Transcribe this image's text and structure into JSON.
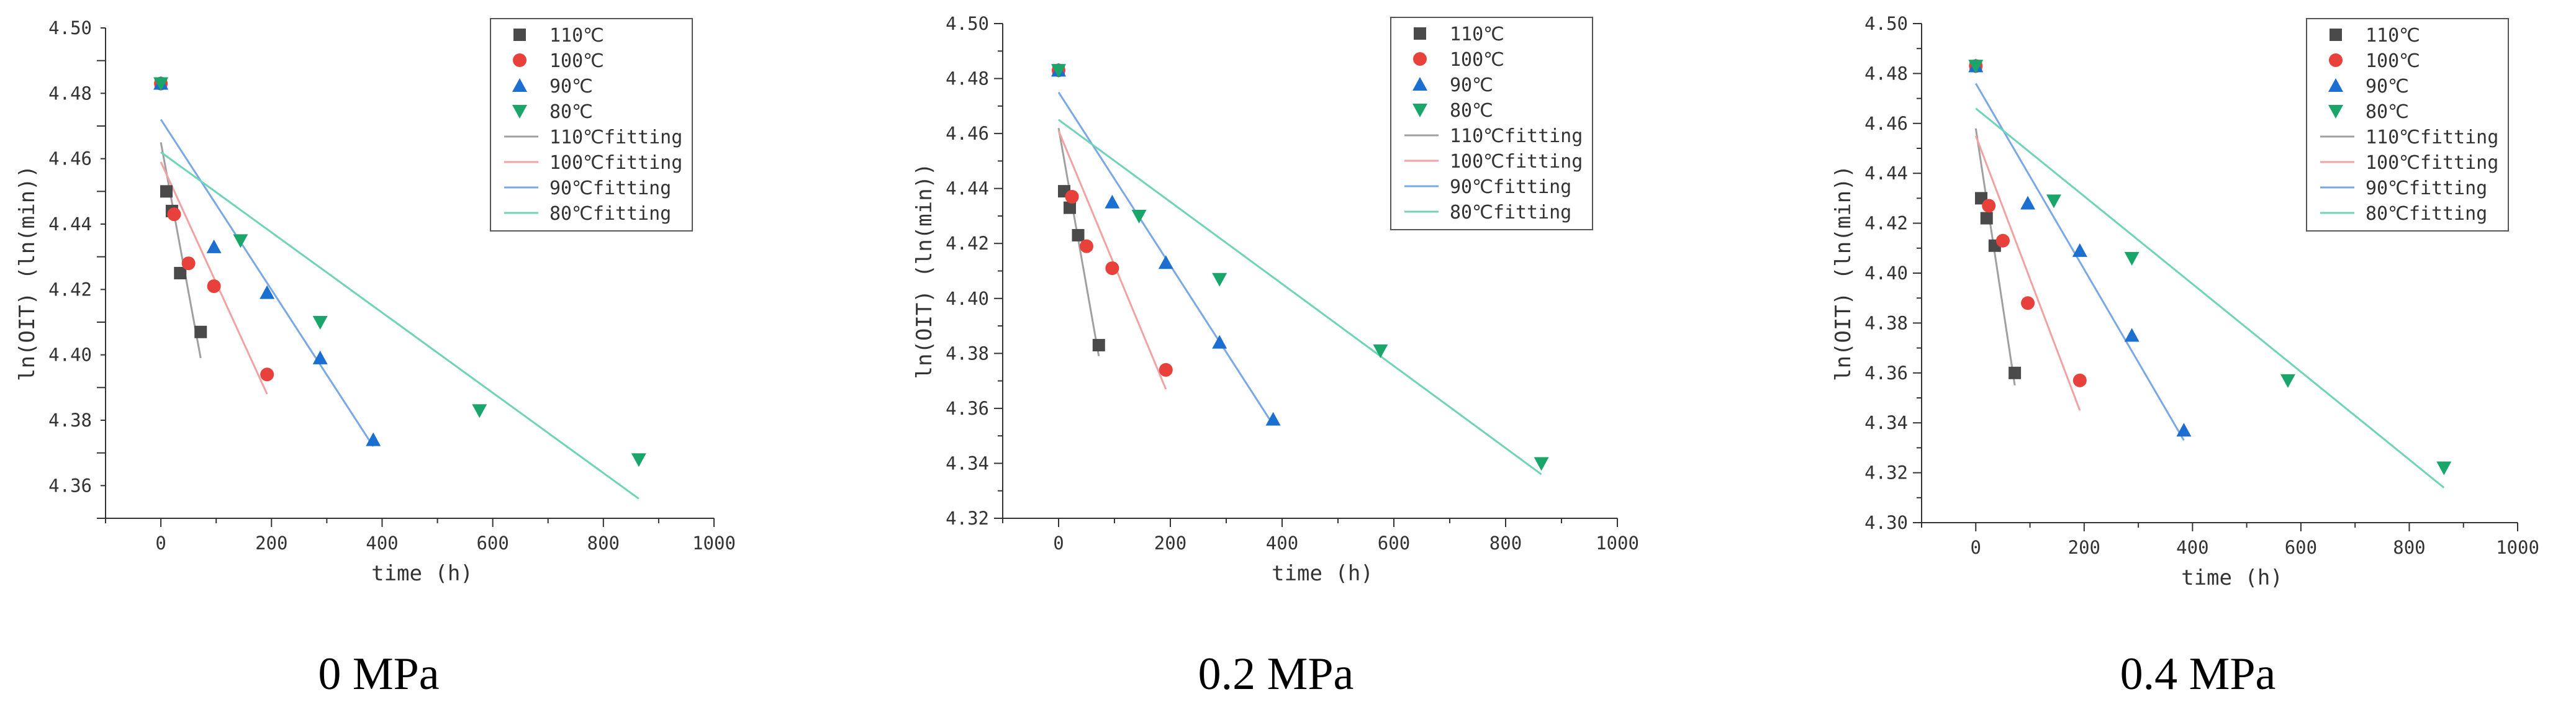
{
  "chart_data": [
    {
      "type": "scatter",
      "title": "",
      "caption": "0 MPa",
      "xlabel": "time (h)",
      "ylabel": "ln(OIT) (ln(min))",
      "xlim": [
        -100,
        1000
      ],
      "ylim": [
        4.35,
        4.5
      ],
      "xticks": [
        0,
        200,
        400,
        600,
        800,
        1000
      ],
      "xtick_labels": [
        "0",
        "200",
        "400",
        "600",
        "800",
        "1000"
      ],
      "yticks": [
        4.36,
        4.38,
        4.4,
        4.42,
        4.44,
        4.46,
        4.48,
        4.5
      ],
      "ytick_labels": [
        "4.36",
        "4.38",
        "4.40",
        "4.42",
        "4.44",
        "4.46",
        "4.48",
        "4.50"
      ],
      "grid": false,
      "legend_position": "top-right",
      "series": [
        {
          "name": "110℃",
          "marker": "square",
          "color": "#4a4a4a",
          "x": [
            0,
            10,
            20,
            35,
            72
          ],
          "y": [
            4.483,
            4.45,
            4.444,
            4.425,
            4.407
          ]
        },
        {
          "name": "100℃",
          "marker": "circle",
          "color": "#e8413c",
          "x": [
            0,
            24,
            50,
            96,
            192
          ],
          "y": [
            4.483,
            4.443,
            4.428,
            4.421,
            4.394
          ]
        },
        {
          "name": "90℃",
          "marker": "triangle-up",
          "color": "#1a6fd1",
          "x": [
            0,
            96,
            192,
            288,
            384
          ],
          "y": [
            4.483,
            4.433,
            4.419,
            4.399,
            4.374
          ]
        },
        {
          "name": "80℃",
          "marker": "triangle-down",
          "color": "#1aa66b",
          "x": [
            0,
            144,
            288,
            576,
            864
          ],
          "y": [
            4.483,
            4.435,
            4.41,
            4.383,
            4.368
          ]
        }
      ],
      "fits": [
        {
          "name": "110℃fitting",
          "color": "#a0a0a0",
          "x": [
            0,
            72
          ],
          "y": [
            4.465,
            4.399
          ]
        },
        {
          "name": "100℃fitting",
          "color": "#f2a2a2",
          "x": [
            0,
            192
          ],
          "y": [
            4.459,
            4.388
          ]
        },
        {
          "name": "90℃fitting",
          "color": "#78a8e6",
          "x": [
            0,
            384
          ],
          "y": [
            4.472,
            4.372
          ]
        },
        {
          "name": "80℃fitting",
          "color": "#6fd3b8",
          "x": [
            0,
            864
          ],
          "y": [
            4.462,
            4.356
          ]
        }
      ]
    },
    {
      "type": "scatter",
      "title": "",
      "caption": "0.2 MPa",
      "xlabel": "time (h)",
      "ylabel": "ln(OIT) (ln(min))",
      "xlim": [
        -100,
        1000
      ],
      "ylim": [
        4.32,
        4.5
      ],
      "xticks": [
        0,
        200,
        400,
        600,
        800,
        1000
      ],
      "xtick_labels": [
        "0",
        "200",
        "400",
        "600",
        "800",
        "1000"
      ],
      "yticks": [
        4.32,
        4.34,
        4.36,
        4.38,
        4.4,
        4.42,
        4.44,
        4.46,
        4.48,
        4.5
      ],
      "ytick_labels": [
        "4.32",
        "4.34",
        "4.36",
        "4.38",
        "4.40",
        "4.42",
        "4.44",
        "4.46",
        "4.48",
        "4.50"
      ],
      "grid": false,
      "legend_position": "top-right",
      "series": [
        {
          "name": "110℃",
          "marker": "square",
          "color": "#4a4a4a",
          "x": [
            0,
            10,
            20,
            35,
            72
          ],
          "y": [
            4.483,
            4.439,
            4.433,
            4.423,
            4.383
          ]
        },
        {
          "name": "100℃",
          "marker": "circle",
          "color": "#e8413c",
          "x": [
            0,
            24,
            50,
            96,
            192
          ],
          "y": [
            4.483,
            4.437,
            4.419,
            4.411,
            4.374
          ]
        },
        {
          "name": "90℃",
          "marker": "triangle-up",
          "color": "#1a6fd1",
          "x": [
            0,
            96,
            192,
            288,
            384
          ],
          "y": [
            4.483,
            4.435,
            4.413,
            4.384,
            4.356
          ]
        },
        {
          "name": "80℃",
          "marker": "triangle-down",
          "color": "#1aa66b",
          "x": [
            0,
            144,
            288,
            576,
            864
          ],
          "y": [
            4.483,
            4.43,
            4.407,
            4.381,
            4.34
          ]
        }
      ],
      "fits": [
        {
          "name": "110℃fitting",
          "color": "#a0a0a0",
          "x": [
            0,
            72
          ],
          "y": [
            4.462,
            4.379
          ]
        },
        {
          "name": "100℃fitting",
          "color": "#f2a2a2",
          "x": [
            0,
            192
          ],
          "y": [
            4.461,
            4.367
          ]
        },
        {
          "name": "90℃fitting",
          "color": "#78a8e6",
          "x": [
            0,
            384
          ],
          "y": [
            4.475,
            4.354
          ]
        },
        {
          "name": "80℃fitting",
          "color": "#6fd3b8",
          "x": [
            0,
            864
          ],
          "y": [
            4.465,
            4.336
          ]
        }
      ]
    },
    {
      "type": "scatter",
      "title": "",
      "caption": "0.4 MPa",
      "xlabel": "time (h)",
      "ylabel": "ln(OIT) (ln(min))",
      "xlim": [
        -100,
        1000
      ],
      "ylim": [
        4.3,
        4.5
      ],
      "xticks": [
        0,
        200,
        400,
        600,
        800,
        1000
      ],
      "xtick_labels": [
        "0",
        "200",
        "400",
        "600",
        "800",
        "1000"
      ],
      "yticks": [
        4.3,
        4.32,
        4.34,
        4.36,
        4.38,
        4.4,
        4.42,
        4.44,
        4.46,
        4.48,
        4.5
      ],
      "ytick_labels": [
        "4.30",
        "4.32",
        "4.34",
        "4.36",
        "4.38",
        "4.40",
        "4.42",
        "4.44",
        "4.46",
        "4.48",
        "4.50"
      ],
      "grid": false,
      "legend_position": "top-right",
      "series": [
        {
          "name": "110℃",
          "marker": "square",
          "color": "#4a4a4a",
          "x": [
            0,
            10,
            20,
            35,
            72
          ],
          "y": [
            4.483,
            4.43,
            4.422,
            4.411,
            4.36
          ]
        },
        {
          "name": "100℃",
          "marker": "circle",
          "color": "#e8413c",
          "x": [
            0,
            24,
            50,
            96,
            192
          ],
          "y": [
            4.483,
            4.427,
            4.413,
            4.388,
            4.357
          ]
        },
        {
          "name": "90℃",
          "marker": "triangle-up",
          "color": "#1a6fd1",
          "x": [
            0,
            96,
            192,
            288,
            384
          ],
          "y": [
            4.483,
            4.428,
            4.409,
            4.375,
            4.337
          ]
        },
        {
          "name": "80℃",
          "marker": "triangle-down",
          "color": "#1aa66b",
          "x": [
            0,
            144,
            288,
            576,
            864
          ],
          "y": [
            4.483,
            4.429,
            4.406,
            4.357,
            4.322
          ]
        }
      ],
      "fits": [
        {
          "name": "110℃fitting",
          "color": "#a0a0a0",
          "x": [
            0,
            72
          ],
          "y": [
            4.458,
            4.355
          ]
        },
        {
          "name": "100℃fitting",
          "color": "#f2a2a2",
          "x": [
            0,
            192
          ],
          "y": [
            4.455,
            4.345
          ]
        },
        {
          "name": "90℃fitting",
          "color": "#78a8e6",
          "x": [
            0,
            384
          ],
          "y": [
            4.476,
            4.333
          ]
        },
        {
          "name": "80℃fitting",
          "color": "#6fd3b8",
          "x": [
            0,
            864
          ],
          "y": [
            4.466,
            4.314
          ]
        }
      ]
    }
  ]
}
